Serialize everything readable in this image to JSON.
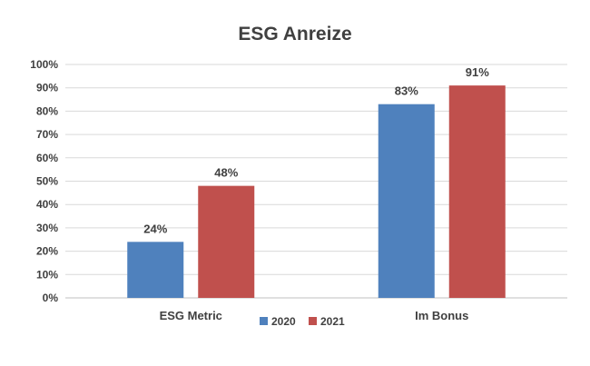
{
  "chart_data": {
    "type": "bar",
    "title": "ESG Anreize",
    "categories": [
      "ESG Metric",
      "Im Bonus"
    ],
    "series": [
      {
        "name": "2020",
        "values": [
          24,
          83
        ],
        "labels": [
          "24%",
          "83%"
        ],
        "color": "#4F81BD"
      },
      {
        "name": "2021",
        "values": [
          48,
          91
        ],
        "labels": [
          "48%",
          "91%"
        ],
        "color": "#C0504D"
      }
    ],
    "ylim": [
      0,
      100
    ],
    "yticks": [
      "0%",
      "10%",
      "20%",
      "30%",
      "40%",
      "50%",
      "60%",
      "70%",
      "80%",
      "90%",
      "100%"
    ],
    "grid": true,
    "legend": "bottom",
    "gridColor": "#D9D9D9",
    "axisColor": "#BFBFBF"
  }
}
